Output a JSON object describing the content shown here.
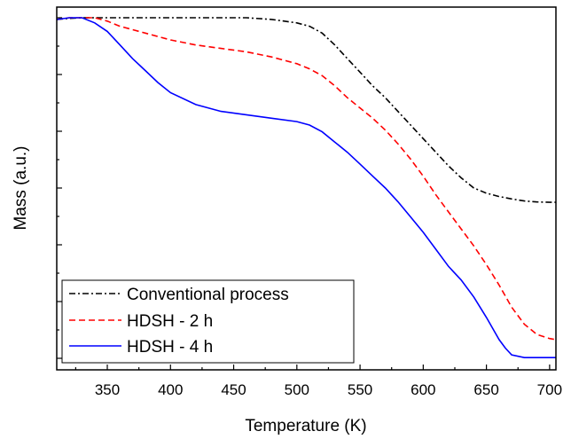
{
  "chart_data": {
    "type": "line",
    "title": "",
    "xlabel": "Temperature (K)",
    "ylabel": "Mass (a.u.)",
    "xlim": [
      310,
      705
    ],
    "ylim": [
      0,
      1
    ],
    "x_ticks": [
      350,
      400,
      450,
      500,
      550,
      600,
      650,
      700
    ],
    "y_tick_labels_shown": false,
    "grid": false,
    "legend_position": "bottom-left",
    "series": [
      {
        "name": "Conventional process",
        "color": "#000000",
        "dash": "dash-dot",
        "x": [
          310,
          320,
          330,
          340,
          350,
          370,
          400,
          430,
          460,
          480,
          500,
          510,
          520,
          530,
          540,
          550,
          560,
          570,
          580,
          590,
          600,
          610,
          620,
          630,
          640,
          650,
          660,
          670,
          680,
          690,
          700,
          705
        ],
        "y": [
          0.995,
          0.998,
          1.0,
          1.0,
          1.0,
          1.0,
          1.0,
          1.0,
          1.0,
          0.995,
          0.985,
          0.975,
          0.955,
          0.92,
          0.88,
          0.84,
          0.8,
          0.765,
          0.725,
          0.685,
          0.645,
          0.605,
          0.565,
          0.53,
          0.5,
          0.485,
          0.475,
          0.468,
          0.462,
          0.459,
          0.458,
          0.458
        ]
      },
      {
        "name": "HDSH - 2 h",
        "color": "#ff0000",
        "dash": "dashed",
        "x": [
          310,
          320,
          330,
          340,
          350,
          360,
          380,
          400,
          420,
          440,
          460,
          480,
          500,
          510,
          520,
          530,
          540,
          550,
          560,
          570,
          580,
          590,
          600,
          610,
          620,
          630,
          640,
          650,
          660,
          670,
          680,
          690,
          700,
          705
        ],
        "y": [
          0.995,
          1.0,
          1.0,
          1.0,
          0.99,
          0.975,
          0.955,
          0.935,
          0.92,
          0.91,
          0.9,
          0.885,
          0.865,
          0.85,
          0.83,
          0.8,
          0.765,
          0.735,
          0.705,
          0.67,
          0.63,
          0.585,
          0.535,
          0.48,
          0.43,
          0.38,
          0.33,
          0.275,
          0.215,
          0.15,
          0.1,
          0.07,
          0.058,
          0.055
        ]
      },
      {
        "name": "HDSH - 4 h",
        "color": "#0000ff",
        "dash": "solid",
        "x": [
          310,
          320,
          330,
          340,
          350,
          360,
          370,
          380,
          390,
          400,
          420,
          440,
          460,
          480,
          500,
          510,
          520,
          530,
          540,
          550,
          560,
          570,
          580,
          590,
          600,
          610,
          620,
          630,
          640,
          650,
          660,
          665,
          670,
          680,
          690,
          700,
          705
        ],
        "y": [
          0.995,
          1.0,
          1.0,
          0.985,
          0.96,
          0.92,
          0.88,
          0.845,
          0.81,
          0.78,
          0.745,
          0.725,
          0.715,
          0.705,
          0.695,
          0.685,
          0.665,
          0.635,
          0.605,
          0.57,
          0.535,
          0.5,
          0.46,
          0.415,
          0.37,
          0.32,
          0.27,
          0.23,
          0.18,
          0.12,
          0.055,
          0.03,
          0.01,
          0.002,
          0.002,
          0.002,
          0.002
        ]
      }
    ]
  }
}
